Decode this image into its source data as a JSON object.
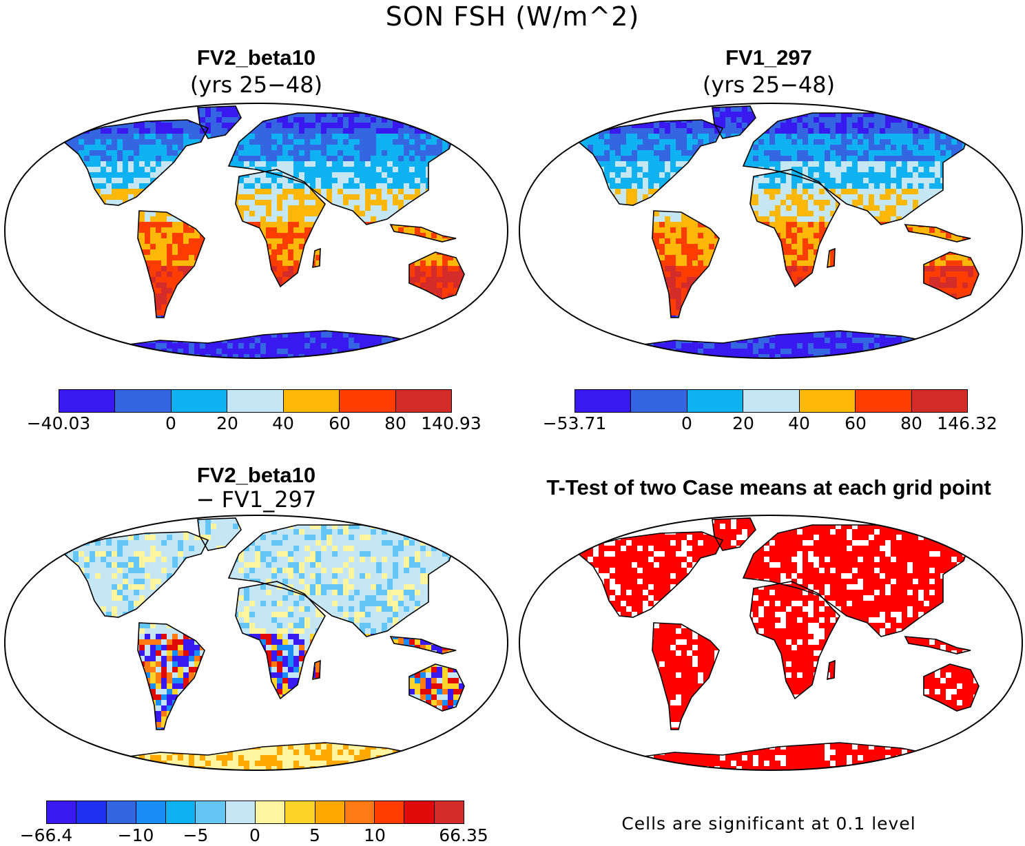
{
  "figure": {
    "title": "SON FSH (W/m^2)"
  },
  "panels": {
    "top_left": {
      "title": "FV2_beta10",
      "subtitle": "(yrs 25-48)",
      "colorbar": {
        "colors": [
          "#3a18f0",
          "#3366e0",
          "#0fb2f0",
          "#c4e6f5",
          "#ffb708",
          "#ff3d00",
          "#d42b2b"
        ],
        "labels": [
          "-40.03",
          "0",
          "20",
          "40",
          "60",
          "80",
          "140.93"
        ]
      }
    },
    "top_right": {
      "title": "FV1_297",
      "subtitle": "(yrs 25-48)",
      "colorbar": {
        "colors": [
          "#3a18f0",
          "#3366e0",
          "#0fb2f0",
          "#c4e6f5",
          "#ffb708",
          "#ff3d00",
          "#d42b2b"
        ],
        "labels": [
          "-53.71",
          "0",
          "20",
          "40",
          "60",
          "80",
          "146.32"
        ]
      }
    },
    "bottom_left": {
      "title": "FV2_beta10",
      "subtitle": "- FV1_297",
      "colorbar": {
        "colors": [
          "#3a18f0",
          "#1e30f0",
          "#3366e0",
          "#1a8cf5",
          "#0fb2f0",
          "#64c6f5",
          "#c4e6f5",
          "#fff5a0",
          "#ffd42a",
          "#ffa800",
          "#ff7a12",
          "#ff3d00",
          "#e00a0a",
          "#d42b2b"
        ],
        "labels": [
          "-66.4",
          "-10",
          "-5",
          "0",
          "5",
          "10",
          "66.35"
        ]
      }
    },
    "bottom_right": {
      "title": "T-Test of two Case means at each grid point",
      "note": "Cells are significant at 0.1 level",
      "significant_color": "#ff0000"
    }
  }
}
